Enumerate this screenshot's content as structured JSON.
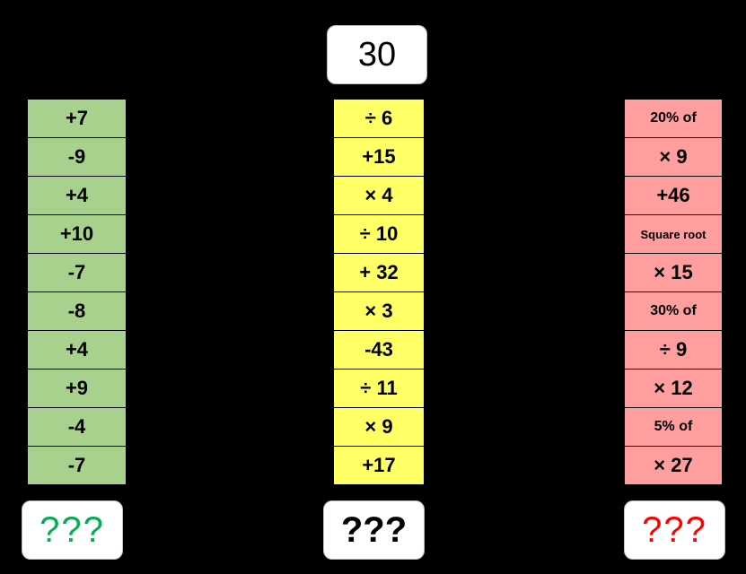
{
  "start_value": "30",
  "columns": {
    "green": {
      "color": "#a9d18e",
      "cells": [
        "+7",
        "-9",
        "+4",
        "+10",
        "-7",
        "-8",
        "+4",
        "+9",
        "-4",
        "-7"
      ],
      "answer": "???",
      "answer_color": "#00b050"
    },
    "yellow": {
      "color": "#ffff66",
      "cells": [
        "÷ 6",
        "+15",
        "× 4",
        "÷ 10",
        "+ 32",
        "× 3",
        "-43",
        "÷ 11",
        "× 9",
        "+17"
      ],
      "answer": "???",
      "answer_color": "#000000"
    },
    "red": {
      "color": "#ff9e9e",
      "cells": [
        "20% of",
        "× 9",
        "+46",
        "Square root",
        "× 15",
        "30% of",
        "÷ 9",
        "× 12",
        "5% of",
        "× 27"
      ],
      "answer": "???",
      "answer_color": "#ff0000"
    }
  }
}
